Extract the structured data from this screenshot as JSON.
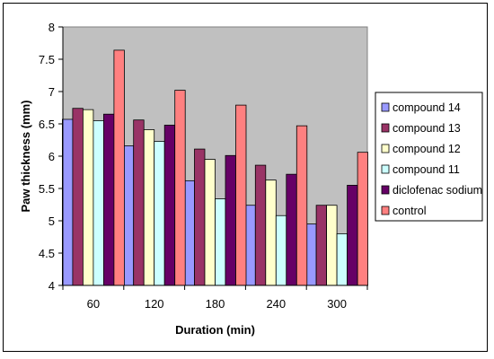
{
  "chart_data": {
    "type": "bar",
    "title": "",
    "xlabel": "Duration (min)",
    "ylabel": "Paw thickness (mm)",
    "categories": [
      "60",
      "120",
      "180",
      "240",
      "300"
    ],
    "ylim": [
      4,
      8
    ],
    "yticks": [
      "4",
      "4.5",
      "5",
      "5.5",
      "6",
      "6.5",
      "7",
      "7.5",
      "8"
    ],
    "grid": false,
    "legend_position": "right",
    "plot_background": "#c0c0c0",
    "series": [
      {
        "name": "compound 14",
        "color": "#9999ff",
        "values": [
          6.57,
          6.16,
          5.62,
          5.24,
          4.95
        ]
      },
      {
        "name": "compound 13",
        "color": "#993366",
        "values": [
          6.74,
          6.56,
          6.11,
          5.86,
          5.24
        ]
      },
      {
        "name": "compound 12",
        "color": "#ffffcc",
        "values": [
          6.72,
          6.41,
          5.95,
          5.63,
          5.24
        ]
      },
      {
        "name": "compound 11",
        "color": "#ccffff",
        "values": [
          6.55,
          6.23,
          5.34,
          5.08,
          4.8
        ]
      },
      {
        "name": "diclofenac sodium",
        "color": "#660066",
        "values": [
          6.65,
          6.48,
          6.01,
          5.72,
          5.55
        ]
      },
      {
        "name": "control",
        "color": "#ff8080",
        "values": [
          7.64,
          7.02,
          6.79,
          6.47,
          6.06
        ]
      }
    ]
  }
}
